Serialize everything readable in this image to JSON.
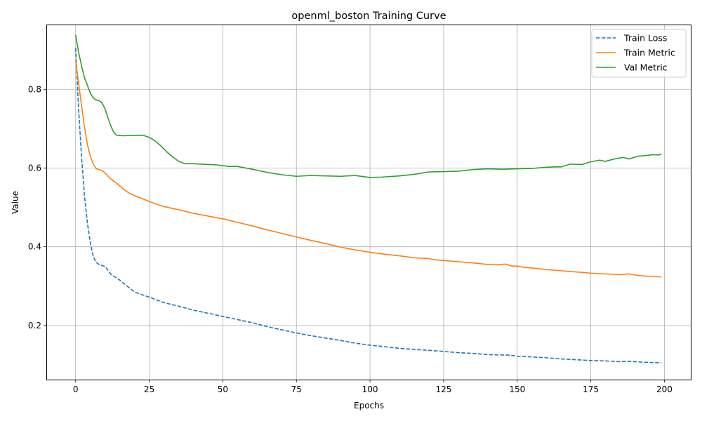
{
  "chart_data": {
    "type": "line",
    "title": "openml_boston Training Curve",
    "xlabel": "Epochs",
    "ylabel": "Value",
    "xlim": [
      -9.95,
      208.95
    ],
    "ylim": [
      0.0625,
      0.9645
    ],
    "xticks": [
      0,
      25,
      50,
      75,
      100,
      125,
      150,
      175,
      200
    ],
    "yticks": [
      0.2,
      0.4,
      0.6,
      0.8
    ],
    "ytick_labels": [
      "0.2",
      "0.4",
      "0.6",
      "0.8"
    ],
    "grid": true,
    "legend_position": "top-right",
    "series": [
      {
        "name": "Train Loss",
        "color": "#1f77b4",
        "style": "dashed",
        "points": [
          [
            0,
            0.905
          ],
          [
            1,
            0.75
          ],
          [
            2,
            0.63
          ],
          [
            3,
            0.53
          ],
          [
            4,
            0.46
          ],
          [
            5,
            0.41
          ],
          [
            6,
            0.375
          ],
          [
            7,
            0.36
          ],
          [
            8,
            0.355
          ],
          [
            10,
            0.35
          ],
          [
            12,
            0.33
          ],
          [
            15,
            0.315
          ],
          [
            18,
            0.297
          ],
          [
            20,
            0.285
          ],
          [
            25,
            0.272
          ],
          [
            30,
            0.258
          ],
          [
            35,
            0.249
          ],
          [
            40,
            0.239
          ],
          [
            45,
            0.231
          ],
          [
            50,
            0.223
          ],
          [
            55,
            0.215
          ],
          [
            60,
            0.207
          ],
          [
            65,
            0.197
          ],
          [
            70,
            0.189
          ],
          [
            75,
            0.181
          ],
          [
            80,
            0.174
          ],
          [
            85,
            0.168
          ],
          [
            90,
            0.162
          ],
          [
            95,
            0.155
          ],
          [
            100,
            0.15
          ],
          [
            105,
            0.146
          ],
          [
            110,
            0.142
          ],
          [
            115,
            0.139
          ],
          [
            120,
            0.137
          ],
          [
            125,
            0.134
          ],
          [
            130,
            0.131
          ],
          [
            135,
            0.129
          ],
          [
            140,
            0.126
          ],
          [
            145,
            0.125
          ],
          [
            147,
            0.125
          ],
          [
            150,
            0.122
          ],
          [
            155,
            0.12
          ],
          [
            160,
            0.118
          ],
          [
            165,
            0.115
          ],
          [
            170,
            0.113
          ],
          [
            175,
            0.111
          ],
          [
            180,
            0.11
          ],
          [
            185,
            0.108
          ],
          [
            188,
            0.109
          ],
          [
            190,
            0.108
          ],
          [
            195,
            0.106
          ],
          [
            199,
            0.105
          ]
        ]
      },
      {
        "name": "Train Metric",
        "color": "#ff7f0e",
        "style": "solid",
        "points": [
          [
            0,
            0.875
          ],
          [
            1,
            0.815
          ],
          [
            2,
            0.76
          ],
          [
            3,
            0.705
          ],
          [
            4,
            0.66
          ],
          [
            5,
            0.63
          ],
          [
            6,
            0.61
          ],
          [
            7,
            0.598
          ],
          [
            9,
            0.594
          ],
          [
            10,
            0.587
          ],
          [
            12,
            0.572
          ],
          [
            14,
            0.561
          ],
          [
            16,
            0.548
          ],
          [
            18,
            0.537
          ],
          [
            20,
            0.53
          ],
          [
            22,
            0.524
          ],
          [
            25,
            0.515
          ],
          [
            28,
            0.507
          ],
          [
            30,
            0.502
          ],
          [
            35,
            0.494
          ],
          [
            40,
            0.485
          ],
          [
            45,
            0.478
          ],
          [
            50,
            0.471
          ],
          [
            55,
            0.462
          ],
          [
            60,
            0.453
          ],
          [
            65,
            0.443
          ],
          [
            70,
            0.434
          ],
          [
            75,
            0.425
          ],
          [
            80,
            0.416
          ],
          [
            85,
            0.408
          ],
          [
            90,
            0.399
          ],
          [
            95,
            0.392
          ],
          [
            100,
            0.386
          ],
          [
            105,
            0.381
          ],
          [
            110,
            0.377
          ],
          [
            115,
            0.372
          ],
          [
            120,
            0.37
          ],
          [
            122,
            0.367
          ],
          [
            125,
            0.365
          ],
          [
            130,
            0.362
          ],
          [
            135,
            0.359
          ],
          [
            140,
            0.355
          ],
          [
            143,
            0.354
          ],
          [
            146,
            0.356
          ],
          [
            148,
            0.351
          ],
          [
            150,
            0.351
          ],
          [
            152,
            0.348
          ],
          [
            155,
            0.346
          ],
          [
            160,
            0.342
          ],
          [
            165,
            0.339
          ],
          [
            170,
            0.336
          ],
          [
            175,
            0.333
          ],
          [
            180,
            0.331
          ],
          [
            185,
            0.329
          ],
          [
            188,
            0.331
          ],
          [
            191,
            0.327
          ],
          [
            195,
            0.325
          ],
          [
            199,
            0.323
          ]
        ]
      },
      {
        "name": "Val Metric",
        "color": "#2ca02c",
        "style": "solid",
        "points": [
          [
            0,
            0.938
          ],
          [
            1,
            0.895
          ],
          [
            2,
            0.86
          ],
          [
            3,
            0.83
          ],
          [
            4,
            0.81
          ],
          [
            5,
            0.79
          ],
          [
            6,
            0.778
          ],
          [
            7,
            0.773
          ],
          [
            8,
            0.771
          ],
          [
            9,
            0.765
          ],
          [
            10,
            0.75
          ],
          [
            11,
            0.727
          ],
          [
            12,
            0.706
          ],
          [
            13,
            0.69
          ],
          [
            14,
            0.683
          ],
          [
            16,
            0.682
          ],
          [
            20,
            0.683
          ],
          [
            23,
            0.683
          ],
          [
            25,
            0.678
          ],
          [
            27,
            0.669
          ],
          [
            29,
            0.656
          ],
          [
            31,
            0.641
          ],
          [
            33,
            0.628
          ],
          [
            35,
            0.617
          ],
          [
            37,
            0.611
          ],
          [
            40,
            0.611
          ],
          [
            45,
            0.609
          ],
          [
            48,
            0.608
          ],
          [
            52,
            0.604
          ],
          [
            55,
            0.604
          ],
          [
            60,
            0.597
          ],
          [
            65,
            0.589
          ],
          [
            70,
            0.583
          ],
          [
            75,
            0.579
          ],
          [
            80,
            0.581
          ],
          [
            85,
            0.58
          ],
          [
            90,
            0.579
          ],
          [
            95,
            0.581
          ],
          [
            100,
            0.576
          ],
          [
            104,
            0.577
          ],
          [
            110,
            0.58
          ],
          [
            115,
            0.584
          ],
          [
            120,
            0.59
          ],
          [
            125,
            0.591
          ],
          [
            130,
            0.592
          ],
          [
            135,
            0.596
          ],
          [
            140,
            0.598
          ],
          [
            145,
            0.597
          ],
          [
            150,
            0.598
          ],
          [
            155,
            0.599
          ],
          [
            160,
            0.602
          ],
          [
            163,
            0.603
          ],
          [
            165,
            0.603
          ],
          [
            168,
            0.61
          ],
          [
            172,
            0.609
          ],
          [
            175,
            0.616
          ],
          [
            178,
            0.62
          ],
          [
            180,
            0.617
          ],
          [
            183,
            0.623
          ],
          [
            186,
            0.627
          ],
          [
            188,
            0.623
          ],
          [
            191,
            0.63
          ],
          [
            194,
            0.632
          ],
          [
            196,
            0.634
          ],
          [
            198,
            0.633
          ],
          [
            199,
            0.636
          ]
        ]
      }
    ]
  }
}
